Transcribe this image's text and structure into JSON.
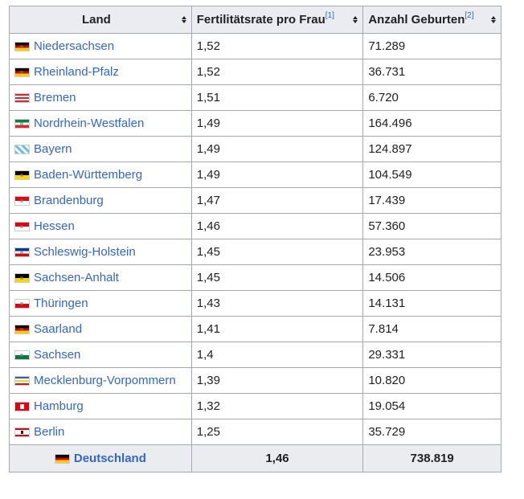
{
  "headers": {
    "land": "Land",
    "fert": "Fertilitätsrate pro Frau",
    "fert_ref": "[1]",
    "births": "Anzahl Geburten",
    "births_ref": "[2]"
  },
  "rows": [
    {
      "land": "Niedersachsen",
      "fert": "1,52",
      "births": "71.289",
      "flag": [
        "#000000",
        "#dd0000",
        "#ffce00"
      ],
      "flag_icon": "niedersachsen-flag-icon"
    },
    {
      "land": "Rheinland-Pfalz",
      "fert": "1,52",
      "births": "36.731",
      "flag": [
        "#000000",
        "#dd0000",
        "#ffce00"
      ],
      "flag_icon": "rheinland-pfalz-flag-icon"
    },
    {
      "land": "Bremen",
      "fert": "1,51",
      "births": "6.720",
      "flag": [
        "#e8202a",
        "#ffffff",
        "#e8202a",
        "#ffffff"
      ],
      "flag_icon": "bremen-flag-icon"
    },
    {
      "land": "Nordrhein-Westfalen",
      "fert": "1,49",
      "births": "164.496",
      "flag": [
        "#008544",
        "#ffffff",
        "#e4272e"
      ],
      "flag_icon": "nrw-flag-icon"
    },
    {
      "land": "Bayern",
      "fert": "1,49",
      "births": "124.897",
      "flag": [
        "#6cbfea",
        "#ffffff"
      ],
      "flag_icon": "bayern-flag-icon"
    },
    {
      "land": "Baden-Württemberg",
      "fert": "1,49",
      "births": "104.549",
      "flag": [
        "#000000",
        "#ffd700"
      ],
      "flag_icon": "baden-wuerttemberg-flag-icon"
    },
    {
      "land": "Brandenburg",
      "fert": "1,47",
      "births": "17.439",
      "flag": [
        "#e30613",
        "#ffffff"
      ],
      "flag_icon": "brandenburg-flag-icon"
    },
    {
      "land": "Hessen",
      "fert": "1,46",
      "births": "57.360",
      "flag": [
        "#e3000f",
        "#ffffff"
      ],
      "flag_icon": "hessen-flag-icon"
    },
    {
      "land": "Schleswig-Holstein",
      "fert": "1,45",
      "births": "23.953",
      "flag": [
        "#003a8f",
        "#ffffff",
        "#e3000f"
      ],
      "flag_icon": "schleswig-holstein-flag-icon"
    },
    {
      "land": "Sachsen-Anhalt",
      "fert": "1,45",
      "births": "14.506",
      "flag": [
        "#000000",
        "#ffd500"
      ],
      "flag_icon": "sachsen-anhalt-flag-icon"
    },
    {
      "land": "Thüringen",
      "fert": "1,43",
      "births": "14.131",
      "flag": [
        "#ffffff",
        "#e3000f"
      ],
      "flag_icon": "thueringen-flag-icon"
    },
    {
      "land": "Saarland",
      "fert": "1,41",
      "births": "7.814",
      "flag": [
        "#000000",
        "#dd0000",
        "#ffce00"
      ],
      "flag_icon": "saarland-flag-icon"
    },
    {
      "land": "Sachsen",
      "fert": "1,4",
      "births": "29.331",
      "flag": [
        "#ffffff",
        "#007a3d"
      ],
      "flag_icon": "sachsen-flag-icon"
    },
    {
      "land": "Mecklenburg-Vorpommern",
      "fert": "1,39",
      "births": "10.820",
      "flag": [
        "#2f5fa5",
        "#ffffff",
        "#ffd700",
        "#ffffff",
        "#d7141a"
      ],
      "flag_icon": "mecklenburg-vorpommern-flag-icon"
    },
    {
      "land": "Hamburg",
      "fert": "1,32",
      "births": "19.054",
      "flag": [
        "#e3000f"
      ],
      "flag_icon": "hamburg-flag-icon"
    },
    {
      "land": "Berlin",
      "fert": "1,25",
      "births": "35.729",
      "flag": [
        "#e3000f",
        "#ffffff",
        "#e3000f"
      ],
      "flag_icon": "berlin-flag-icon"
    }
  ],
  "total": {
    "land": "Deutschland",
    "fert": "1,46",
    "births": "738.819",
    "flag": [
      "#000000",
      "#dd0000",
      "#ffce00"
    ],
    "flag_icon": "germany-flag-icon"
  }
}
